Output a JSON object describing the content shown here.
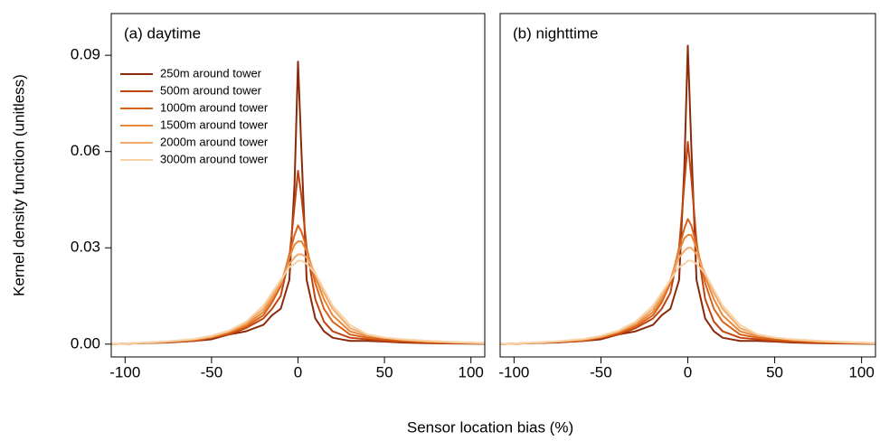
{
  "xlabel": "Sensor location bias (%)",
  "chart_data": [
    {
      "type": "line",
      "title": "(a) daytime",
      "ylabel": "Kernel density function (unitless)",
      "legend": "top-left",
      "x": [
        -108,
        -90,
        -75,
        -60,
        -50,
        -40,
        -30,
        -20,
        -15,
        -10,
        -5,
        -2,
        0,
        2,
        5,
        10,
        15,
        20,
        30,
        40,
        50,
        60,
        75,
        90,
        108
      ],
      "xlim": [
        -108,
        108
      ],
      "ylim": [
        -0.004,
        0.103
      ],
      "xticks": [
        -100,
        -50,
        0,
        50,
        100
      ],
      "yticks": [
        {
          "value": 0,
          "label": "0.00"
        },
        0.03,
        0.06,
        0.09
      ],
      "series": [
        {
          "name": "250m around tower",
          "color": "#8b2a0a",
          "values": [
            0,
            0.0003,
            0.0005,
            0.001,
            0.0015,
            0.003,
            0.004,
            0.006,
            0.009,
            0.011,
            0.02,
            0.05,
            0.088,
            0.06,
            0.02,
            0.008,
            0.004,
            0.002,
            0.001,
            0.001,
            0.0008,
            0.0005,
            0.0003,
            0.0002,
            0.0001
          ]
        },
        {
          "name": "500m around tower",
          "color": "#c0440f",
          "values": [
            0,
            0.0003,
            0.0006,
            0.001,
            0.002,
            0.003,
            0.005,
            0.008,
            0.011,
            0.015,
            0.027,
            0.043,
            0.054,
            0.046,
            0.03,
            0.014,
            0.007,
            0.004,
            0.002,
            0.0015,
            0.001,
            0.0008,
            0.0005,
            0.0003,
            0.0002
          ]
        },
        {
          "name": "1000m around tower",
          "color": "#d8641a",
          "values": [
            0,
            0.0003,
            0.0007,
            0.0012,
            0.002,
            0.0035,
            0.0055,
            0.009,
            0.013,
            0.018,
            0.028,
            0.034,
            0.037,
            0.035,
            0.03,
            0.019,
            0.011,
            0.007,
            0.003,
            0.002,
            0.0015,
            0.001,
            0.0006,
            0.0004,
            0.0002
          ]
        },
        {
          "name": "1500m around tower",
          "color": "#e8873a",
          "values": [
            0,
            0.0004,
            0.0008,
            0.0014,
            0.0022,
            0.0038,
            0.006,
            0.01,
            0.014,
            0.019,
            0.027,
            0.031,
            0.032,
            0.032,
            0.029,
            0.021,
            0.014,
            0.009,
            0.004,
            0.0025,
            0.002,
            0.0013,
            0.0008,
            0.0005,
            0.0003
          ]
        },
        {
          "name": "2000m around tower",
          "color": "#f1aa6a",
          "values": [
            0,
            0.0004,
            0.0008,
            0.0015,
            0.0024,
            0.004,
            0.0065,
            0.011,
            0.015,
            0.019,
            0.025,
            0.027,
            0.028,
            0.028,
            0.027,
            0.022,
            0.016,
            0.011,
            0.005,
            0.003,
            0.002,
            0.0015,
            0.001,
            0.0006,
            0.0003
          ]
        },
        {
          "name": "3000m around tower",
          "color": "#f7d2a6",
          "values": [
            0,
            0.0004,
            0.0009,
            0.0016,
            0.0026,
            0.0042,
            0.007,
            0.012,
            0.016,
            0.02,
            0.024,
            0.025,
            0.026,
            0.026,
            0.025,
            0.022,
            0.017,
            0.012,
            0.006,
            0.003,
            0.002,
            0.0015,
            0.001,
            0.0006,
            0.0003
          ]
        }
      ]
    },
    {
      "type": "line",
      "title": "(b) nighttime",
      "x": [
        -108,
        -90,
        -75,
        -60,
        -50,
        -40,
        -30,
        -20,
        -15,
        -10,
        -5,
        -2,
        0,
        2,
        5,
        10,
        15,
        20,
        30,
        40,
        50,
        60,
        75,
        90,
        108
      ],
      "xlim": [
        -108,
        108
      ],
      "ylim": [
        -0.004,
        0.103
      ],
      "xticks": [
        -100,
        -50,
        0,
        50,
        100
      ],
      "series": [
        {
          "color": "#8b2a0a",
          "values": [
            0,
            0.0003,
            0.0005,
            0.001,
            0.0015,
            0.003,
            0.004,
            0.006,
            0.009,
            0.011,
            0.02,
            0.055,
            0.093,
            0.062,
            0.02,
            0.008,
            0.004,
            0.002,
            0.001,
            0.001,
            0.0008,
            0.0005,
            0.0003,
            0.0002,
            0.0001
          ]
        },
        {
          "color": "#c0440f",
          "values": [
            0,
            0.0003,
            0.0006,
            0.001,
            0.002,
            0.003,
            0.005,
            0.008,
            0.011,
            0.016,
            0.03,
            0.05,
            0.063,
            0.052,
            0.032,
            0.014,
            0.007,
            0.004,
            0.002,
            0.0015,
            0.001,
            0.0008,
            0.0005,
            0.0003,
            0.0002
          ]
        },
        {
          "color": "#d8641a",
          "values": [
            0,
            0.0003,
            0.0007,
            0.0012,
            0.002,
            0.0035,
            0.0055,
            0.009,
            0.013,
            0.019,
            0.03,
            0.036,
            0.039,
            0.037,
            0.031,
            0.019,
            0.011,
            0.007,
            0.003,
            0.002,
            0.0015,
            0.001,
            0.0006,
            0.0004,
            0.0002
          ]
        },
        {
          "color": "#e8873a",
          "values": [
            0,
            0.0004,
            0.0008,
            0.0014,
            0.0022,
            0.0038,
            0.006,
            0.01,
            0.014,
            0.02,
            0.029,
            0.033,
            0.034,
            0.034,
            0.03,
            0.021,
            0.014,
            0.009,
            0.004,
            0.0025,
            0.002,
            0.0013,
            0.0008,
            0.0005,
            0.0003
          ]
        },
        {
          "color": "#f1aa6a",
          "values": [
            0,
            0.0004,
            0.0008,
            0.0015,
            0.0024,
            0.004,
            0.0065,
            0.011,
            0.015,
            0.02,
            0.027,
            0.029,
            0.03,
            0.03,
            0.028,
            0.022,
            0.016,
            0.011,
            0.005,
            0.003,
            0.002,
            0.0015,
            0.001,
            0.0006,
            0.0003
          ]
        },
        {
          "color": "#f7d2a6",
          "values": [
            0,
            0.0004,
            0.0009,
            0.0016,
            0.0026,
            0.0042,
            0.007,
            0.012,
            0.016,
            0.02,
            0.024,
            0.025,
            0.026,
            0.026,
            0.025,
            0.022,
            0.017,
            0.012,
            0.006,
            0.003,
            0.002,
            0.0015,
            0.001,
            0.0006,
            0.0003
          ]
        }
      ]
    }
  ]
}
